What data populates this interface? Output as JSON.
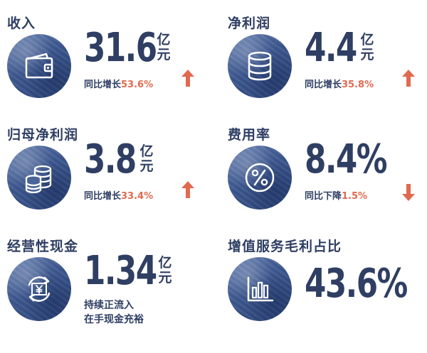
{
  "colors": {
    "accent_up": "#e06a4f",
    "accent_down": "#e06a4f",
    "primary": "#2f3e63"
  },
  "cards": [
    {
      "title": "收入",
      "value": "31.6",
      "unit": "亿元",
      "growth_label": "同比增长",
      "growth_value": "53.6%",
      "trend": "up",
      "icon": "wallet-icon"
    },
    {
      "title": "净利润",
      "value": "4.4",
      "unit": "亿元",
      "growth_label": "同比增长",
      "growth_value": "35.8%",
      "trend": "up",
      "icon": "database-icon"
    },
    {
      "title": "归母净利润",
      "value": "3.8",
      "unit": "亿元",
      "growth_label": "同比增长",
      "growth_value": "33.4%",
      "trend": "up",
      "icon": "coins-icon"
    },
    {
      "title": "费用率",
      "value": "8.4%",
      "growth_label": "同比下降",
      "growth_value": "1.5%",
      "trend": "down",
      "icon": "percent-icon"
    },
    {
      "title": "经营性现金",
      "value": "1.34",
      "unit": "亿元",
      "note_line1": "持续正流入",
      "note_line2": "在手现金充裕",
      "icon": "yen-cycle-icon"
    },
    {
      "title": "增值服务毛利占比",
      "value": "43.6%",
      "icon": "bar-chart-icon"
    }
  ]
}
